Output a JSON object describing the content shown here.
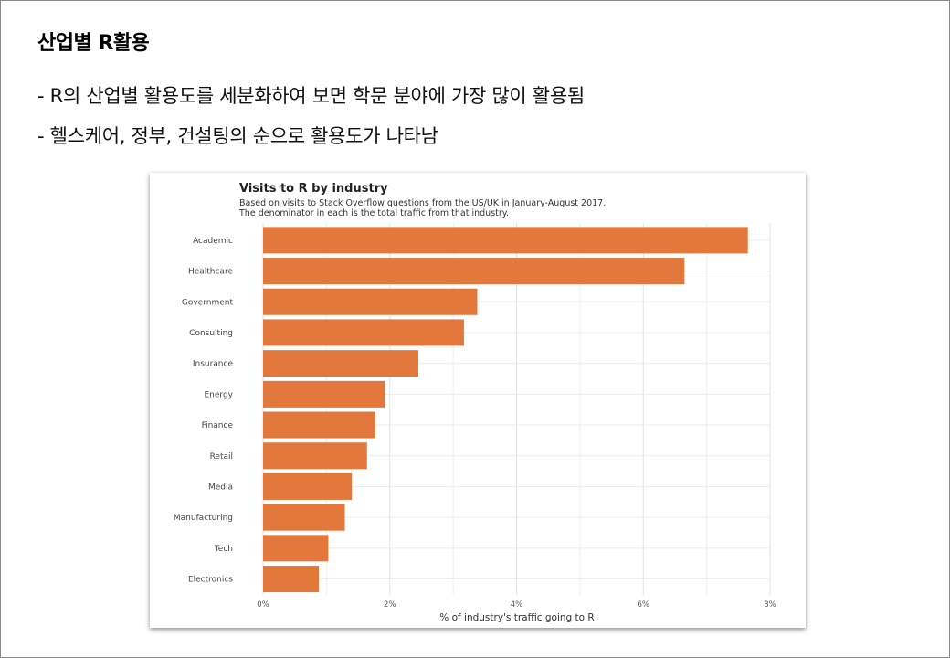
{
  "slide": {
    "title": "산업별 R활용",
    "bullets": [
      "- R의 산업별 활용도를 세분화하여 보면 학문 분야에 가장 많이 활용됨",
      "- 헬스케어, 정부, 건설팅의 순으로 활용도가 나타남"
    ]
  },
  "chart_data": {
    "type": "bar",
    "orientation": "horizontal",
    "title": "Visits to R by industry",
    "subtitle": [
      "Based on visits to Stack Overflow questions from the US/UK in January-August 2017.",
      "The denominator in each is the total traffic from that industry."
    ],
    "categories": [
      "Academic",
      "Healthcare",
      "Government",
      "Consulting",
      "Insurance",
      "Energy",
      "Finance",
      "Retail",
      "Media",
      "Manufacturing",
      "Tech",
      "Electronics"
    ],
    "values": [
      7.65,
      6.65,
      3.38,
      3.17,
      2.45,
      1.92,
      1.77,
      1.64,
      1.4,
      1.29,
      1.03,
      0.88
    ],
    "xlim": [
      0,
      8
    ],
    "xticks": [
      0,
      2,
      4,
      6,
      8
    ],
    "xtick_labels": [
      "0%",
      "2%",
      "4%",
      "6%",
      "8%"
    ],
    "xlabel": "% of industry's traffic going to R",
    "ylabel": "",
    "grid": true,
    "bar_color": "#E2783B"
  }
}
